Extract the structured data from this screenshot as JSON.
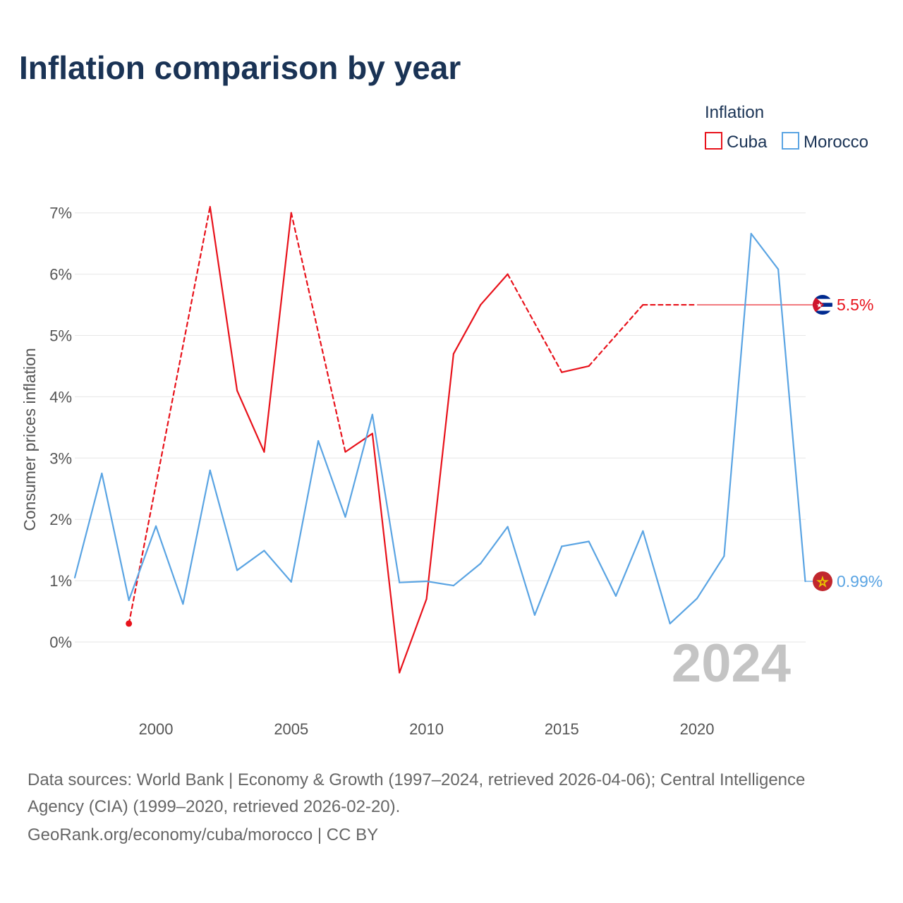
{
  "title": "Inflation comparison by year",
  "legend": {
    "title": "Inflation",
    "items": [
      {
        "name": "Cuba",
        "color": "#e8121b"
      },
      {
        "name": "Morocco",
        "color": "#5aa4e3"
      }
    ]
  },
  "year_watermark": "2024",
  "footer": {
    "line1": "Data sources: World Bank | Economy & Growth (1997–2024, retrieved 2026-04-06); Central Intelligence",
    "line2": "Agency (CIA) (1999–2020, retrieved 2026-02-20).",
    "line3": "GeoRank.org/economy/cuba/morocco | CC BY"
  },
  "chart_data": {
    "type": "line",
    "title": "Inflation comparison by year",
    "xlabel": "",
    "ylabel": "Consumer prices inflation",
    "xlim": [
      1997,
      2024
    ],
    "ylim": [
      -1.05,
      7.1
    ],
    "x_ticks": [
      2000,
      2005,
      2010,
      2015,
      2020
    ],
    "x_tick_labels": [
      "2000",
      "2005",
      "2010",
      "2015",
      "2020"
    ],
    "y_ticks": [
      0,
      1,
      2,
      3,
      4,
      5,
      6,
      7
    ],
    "y_tick_labels": [
      "0%",
      "1%",
      "2%",
      "3%",
      "4%",
      "5%",
      "6%",
      "7%"
    ],
    "grid": true,
    "legend_position": "top-right",
    "series": [
      {
        "name": "Cuba",
        "color": "#e8121b",
        "end_label": "5.5%",
        "end_value": 5.5,
        "points": [
          {
            "x": 1999,
            "y": 0.3
          },
          {
            "x": 2002,
            "y": 7.1
          },
          {
            "x": 2003,
            "y": 4.1
          },
          {
            "x": 2004,
            "y": 3.1
          },
          {
            "x": 2005,
            "y": 7.0
          },
          {
            "x": 2007,
            "y": 3.1
          },
          {
            "x": 2008,
            "y": 3.4
          },
          {
            "x": 2009,
            "y": -0.5
          },
          {
            "x": 2010,
            "y": 0.7
          },
          {
            "x": 2011,
            "y": 4.7
          },
          {
            "x": 2012,
            "y": 5.5
          },
          {
            "x": 2013,
            "y": 6.0
          },
          {
            "x": 2015,
            "y": 4.4
          },
          {
            "x": 2016,
            "y": 4.5
          },
          {
            "x": 2018,
            "y": 5.5
          },
          {
            "x": 2020,
            "y": 5.5
          }
        ]
      },
      {
        "name": "Morocco",
        "color": "#5aa4e3",
        "end_label": "0.99%",
        "end_value": 0.99,
        "points": [
          {
            "x": 1997,
            "y": 1.05
          },
          {
            "x": 1998,
            "y": 2.75
          },
          {
            "x": 1999,
            "y": 0.68
          },
          {
            "x": 2000,
            "y": 1.89
          },
          {
            "x": 2001,
            "y": 0.62
          },
          {
            "x": 2002,
            "y": 2.8
          },
          {
            "x": 2003,
            "y": 1.17
          },
          {
            "x": 2004,
            "y": 1.49
          },
          {
            "x": 2005,
            "y": 0.98
          },
          {
            "x": 2006,
            "y": 3.28
          },
          {
            "x": 2007,
            "y": 2.04
          },
          {
            "x": 2008,
            "y": 3.71
          },
          {
            "x": 2009,
            "y": 0.97
          },
          {
            "x": 2010,
            "y": 0.99
          },
          {
            "x": 2011,
            "y": 0.92
          },
          {
            "x": 2012,
            "y": 1.28
          },
          {
            "x": 2013,
            "y": 1.88
          },
          {
            "x": 2014,
            "y": 0.44
          },
          {
            "x": 2015,
            "y": 1.56
          },
          {
            "x": 2016,
            "y": 1.64
          },
          {
            "x": 2017,
            "y": 0.75
          },
          {
            "x": 2018,
            "y": 1.81
          },
          {
            "x": 2019,
            "y": 0.3
          },
          {
            "x": 2020,
            "y": 0.71
          },
          {
            "x": 2021,
            "y": 1.4
          },
          {
            "x": 2022,
            "y": 6.66
          },
          {
            "x": 2023,
            "y": 6.08
          },
          {
            "x": 2024,
            "y": 0.99
          }
        ]
      }
    ]
  }
}
